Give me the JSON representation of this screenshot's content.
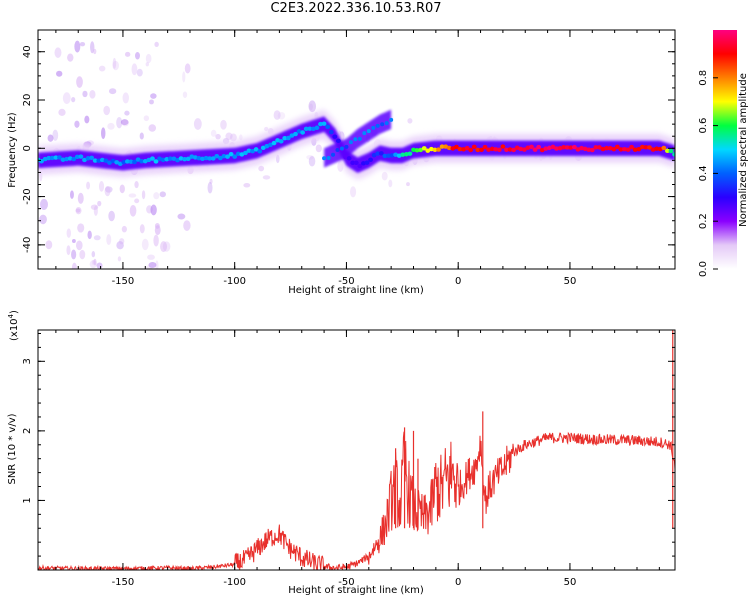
{
  "title": "C2E3.2022.336.10.53.R07",
  "chart_data": [
    {
      "type": "heatmap",
      "title": "C2E3.2022.336.10.53.R07",
      "xlabel": "Height of straight line (km)",
      "ylabel": "Frequency (Hz)",
      "xlim": [
        -188,
        97
      ],
      "ylim": [
        -50,
        49
      ],
      "xticks": [
        -150,
        -100,
        -50,
        0,
        50
      ],
      "yticks": [
        -40,
        -20,
        0,
        20,
        40
      ],
      "colorbar": {
        "label": "Normalized spectral amplitude",
        "range": [
          0.0,
          1.0
        ],
        "ticks": [
          "0.0",
          "0.2",
          "0.4",
          "0.6",
          "0.8"
        ],
        "colormap": [
          "#ffffff",
          "#e4c9f7",
          "#8a00ff",
          "#2a00ff",
          "#0060ff",
          "#00d8ff",
          "#00ff40",
          "#ffff00",
          "#ff8000",
          "#ff0000",
          "#ff0080"
        ]
      },
      "ridge": {
        "x": [
          -188,
          -170,
          -150,
          -140,
          -120,
          -100,
          -90,
          -80,
          -70,
          -60,
          -55,
          -50,
          -45,
          -40,
          -35,
          -30,
          -25,
          -20,
          -10,
          0,
          10,
          30,
          50,
          70,
          90,
          97
        ],
        "y": [
          -5,
          -4,
          -6,
          -5,
          -4,
          -3,
          -1,
          3,
          7,
          10,
          5,
          -4,
          -7,
          -5,
          -2,
          -3,
          -3,
          -1,
          0,
          0,
          0,
          0,
          0,
          0,
          0,
          -2
        ],
        "amplitude": [
          0.45,
          0.45,
          0.42,
          0.45,
          0.45,
          0.45,
          0.45,
          0.45,
          0.45,
          0.45,
          0.3,
          0.25,
          0.25,
          0.3,
          0.35,
          0.4,
          0.55,
          0.6,
          0.75,
          0.9,
          0.9,
          0.95,
          0.95,
          0.95,
          0.9,
          0.5
        ]
      },
      "secondary_ridge": {
        "x": [
          -60,
          -50,
          -45,
          -40,
          -35,
          -30
        ],
        "y": [
          -4,
          0,
          4,
          7,
          10,
          12
        ]
      }
    },
    {
      "type": "line",
      "xlabel": "Height of straight line (km)",
      "ylabel": "SNR (10 * v/v)",
      "y_multiplier": "(x10",
      "y_multiplier_exp": "4",
      "y_multiplier_close": ")",
      "xlim": [
        -188,
        97
      ],
      "ylim": [
        0,
        3.45
      ],
      "xticks": [
        -150,
        -100,
        -50,
        0,
        50
      ],
      "yticks": [
        1,
        2,
        3
      ],
      "color": "#e8302c",
      "series": [
        {
          "x": [
            -188,
            -170,
            -150,
            -130,
            -120,
            -110,
            -100,
            -95,
            -90,
            -85,
            -80,
            -78,
            -75,
            -70,
            -65,
            -60,
            -55,
            -50,
            -45,
            -40,
            -35,
            -32,
            -30,
            -28,
            -26,
            -24,
            -22,
            -20,
            -18,
            -15,
            -12,
            -10,
            -8,
            -5,
            -2,
            0,
            3,
            5,
            8,
            10,
            12,
            15,
            20,
            25,
            30,
            35,
            40,
            50,
            60,
            70,
            80,
            90,
            95,
            97
          ],
          "y": [
            0.03,
            0.02,
            0.02,
            0.03,
            0.02,
            0.04,
            0.08,
            0.15,
            0.3,
            0.45,
            0.52,
            0.42,
            0.3,
            0.18,
            0.1,
            0.05,
            0.03,
            0.04,
            0.1,
            0.2,
            0.45,
            0.7,
            1.0,
            1.2,
            0.9,
            1.5,
            1.1,
            0.9,
            0.8,
            0.75,
            0.9,
            1.2,
            1.15,
            1.3,
            1.4,
            1.15,
            1.3,
            1.4,
            1.5,
            1.85,
            1.0,
            1.25,
            1.45,
            1.7,
            1.8,
            1.85,
            1.9,
            1.9,
            1.88,
            1.87,
            1.86,
            1.84,
            1.8,
            1.5
          ]
        }
      ],
      "spikes": [
        {
          "x": -24,
          "y": 2.05
        },
        {
          "x": -20,
          "y": 2.0
        },
        {
          "x": -28,
          "y": 1.75
        },
        {
          "x": -18,
          "y": 1.6
        },
        {
          "x": 11,
          "y": 2.28
        },
        {
          "x": 96,
          "y": 3.45
        }
      ]
    }
  ]
}
